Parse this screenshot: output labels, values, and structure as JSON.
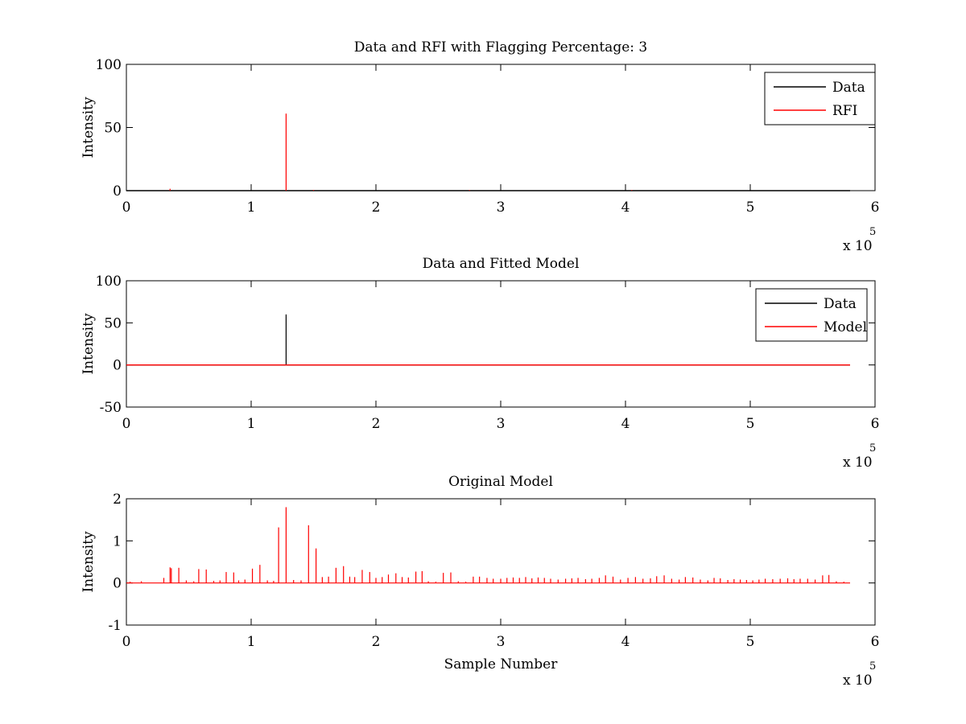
{
  "chart_data": [
    {
      "type": "line",
      "title": "Data and RFI with Flagging Percentage: 3",
      "xlabel": "",
      "ylabel": "Intensity",
      "xlim": [
        0,
        600000
      ],
      "ylim": [
        0,
        100
      ],
      "xticks": [
        0,
        1,
        2,
        3,
        4,
        5,
        6
      ],
      "yticks": [
        0,
        50,
        100
      ],
      "x_multiplier": "x 10",
      "x_multiplier_exp": "5",
      "legend_position": "top-right",
      "grid": false,
      "series": [
        {
          "name": "Data",
          "color": "#000000",
          "baseline": 0,
          "x": [
            0,
            580000
          ],
          "y": [
            0,
            0
          ]
        },
        {
          "name": "RFI",
          "color": "#ff0000",
          "baseline": 0,
          "spikes": [
            {
              "x": 35000,
              "y": 1.5
            },
            {
              "x": 128000,
              "y": 61
            },
            {
              "x": 150000,
              "y": 0.6
            },
            {
              "x": 275000,
              "y": 0.5
            },
            {
              "x": 405000,
              "y": 0.5
            }
          ]
        }
      ]
    },
    {
      "type": "line",
      "title": "Data and Fitted Model",
      "xlabel": "",
      "ylabel": "Intensity",
      "xlim": [
        0,
        600000
      ],
      "ylim": [
        -50,
        100
      ],
      "xticks": [
        0,
        1,
        2,
        3,
        4,
        5,
        6
      ],
      "yticks": [
        -50,
        0,
        50,
        100
      ],
      "x_multiplier": "x 10",
      "x_multiplier_exp": "5",
      "legend_position": "top-right",
      "grid": false,
      "series": [
        {
          "name": "Data",
          "color": "#000000",
          "baseline": 0,
          "x": [
            0,
            580000
          ],
          "y": [
            0,
            0
          ],
          "spikes": [
            {
              "x": 128000,
              "y": 60
            }
          ]
        },
        {
          "name": "Model",
          "color": "#ff0000",
          "baseline": 0,
          "x": [
            0,
            580000
          ],
          "y": [
            0,
            0
          ]
        }
      ]
    },
    {
      "type": "line",
      "title": "Original Model",
      "xlabel": "Sample Number",
      "ylabel": "Intensity",
      "xlim": [
        0,
        600000
      ],
      "ylim": [
        -1,
        2
      ],
      "xticks": [
        0,
        1,
        2,
        3,
        4,
        5,
        6
      ],
      "yticks": [
        -1,
        0,
        1,
        2
      ],
      "x_multiplier": "x 10",
      "x_multiplier_exp": "5",
      "grid": false,
      "series": [
        {
          "color": "#ff0000",
          "baseline": 0,
          "x_extent": [
            0,
            580000
          ],
          "spikes": [
            {
              "x": 3000,
              "y": 0.03
            },
            {
              "x": 12000,
              "y": 0.04
            },
            {
              "x": 30000,
              "y": 0.12
            },
            {
              "x": 35000,
              "y": 0.37
            },
            {
              "x": 36000,
              "y": 0.35
            },
            {
              "x": 42000,
              "y": 0.36
            },
            {
              "x": 48000,
              "y": 0.06
            },
            {
              "x": 54000,
              "y": 0.04
            },
            {
              "x": 58000,
              "y": 0.33
            },
            {
              "x": 64000,
              "y": 0.32
            },
            {
              "x": 70000,
              "y": 0.05
            },
            {
              "x": 75000,
              "y": 0.06
            },
            {
              "x": 80000,
              "y": 0.26
            },
            {
              "x": 86000,
              "y": 0.25
            },
            {
              "x": 90000,
              "y": 0.06
            },
            {
              "x": 95000,
              "y": 0.08
            },
            {
              "x": 101000,
              "y": 0.34
            },
            {
              "x": 107000,
              "y": 0.43
            },
            {
              "x": 113000,
              "y": 0.06
            },
            {
              "x": 118000,
              "y": 0.05
            },
            {
              "x": 122000,
              "y": 1.32
            },
            {
              "x": 128000,
              "y": 1.8
            },
            {
              "x": 134000,
              "y": 0.07
            },
            {
              "x": 140000,
              "y": 0.06
            },
            {
              "x": 146000,
              "y": 1.37
            },
            {
              "x": 152000,
              "y": 0.82
            },
            {
              "x": 157000,
              "y": 0.14
            },
            {
              "x": 162000,
              "y": 0.15
            },
            {
              "x": 168000,
              "y": 0.36
            },
            {
              "x": 174000,
              "y": 0.4
            },
            {
              "x": 179000,
              "y": 0.15
            },
            {
              "x": 183000,
              "y": 0.14
            },
            {
              "x": 189000,
              "y": 0.31
            },
            {
              "x": 195000,
              "y": 0.26
            },
            {
              "x": 200000,
              "y": 0.12
            },
            {
              "x": 205000,
              "y": 0.14
            },
            {
              "x": 210000,
              "y": 0.2
            },
            {
              "x": 216000,
              "y": 0.23
            },
            {
              "x": 221000,
              "y": 0.14
            },
            {
              "x": 226000,
              "y": 0.13
            },
            {
              "x": 232000,
              "y": 0.27
            },
            {
              "x": 237000,
              "y": 0.28
            },
            {
              "x": 242000,
              "y": 0.04
            },
            {
              "x": 248000,
              "y": 0.03
            },
            {
              "x": 254000,
              "y": 0.24
            },
            {
              "x": 260000,
              "y": 0.25
            },
            {
              "x": 266000,
              "y": 0.04
            },
            {
              "x": 272000,
              "y": 0.03
            },
            {
              "x": 278000,
              "y": 0.15
            },
            {
              "x": 283000,
              "y": 0.15
            },
            {
              "x": 289000,
              "y": 0.12
            },
            {
              "x": 294000,
              "y": 0.1
            },
            {
              "x": 300000,
              "y": 0.1
            },
            {
              "x": 305000,
              "y": 0.12
            },
            {
              "x": 310000,
              "y": 0.13
            },
            {
              "x": 315000,
              "y": 0.12
            },
            {
              "x": 320000,
              "y": 0.14
            },
            {
              "x": 325000,
              "y": 0.11
            },
            {
              "x": 330000,
              "y": 0.13
            },
            {
              "x": 335000,
              "y": 0.12
            },
            {
              "x": 340000,
              "y": 0.1
            },
            {
              "x": 346000,
              "y": 0.08
            },
            {
              "x": 352000,
              "y": 0.1
            },
            {
              "x": 357000,
              "y": 0.11
            },
            {
              "x": 362000,
              "y": 0.12
            },
            {
              "x": 368000,
              "y": 0.09
            },
            {
              "x": 373000,
              "y": 0.1
            },
            {
              "x": 379000,
              "y": 0.12
            },
            {
              "x": 384000,
              "y": 0.18
            },
            {
              "x": 390000,
              "y": 0.15
            },
            {
              "x": 396000,
              "y": 0.08
            },
            {
              "x": 402000,
              "y": 0.12
            },
            {
              "x": 408000,
              "y": 0.14
            },
            {
              "x": 414000,
              "y": 0.1
            },
            {
              "x": 420000,
              "y": 0.11
            },
            {
              "x": 425000,
              "y": 0.16
            },
            {
              "x": 431000,
              "y": 0.18
            },
            {
              "x": 437000,
              "y": 0.1
            },
            {
              "x": 443000,
              "y": 0.08
            },
            {
              "x": 448000,
              "y": 0.14
            },
            {
              "x": 454000,
              "y": 0.13
            },
            {
              "x": 460000,
              "y": 0.08
            },
            {
              "x": 466000,
              "y": 0.06
            },
            {
              "x": 471000,
              "y": 0.12
            },
            {
              "x": 476000,
              "y": 0.11
            },
            {
              "x": 482000,
              "y": 0.07
            },
            {
              "x": 487000,
              "y": 0.09
            },
            {
              "x": 492000,
              "y": 0.08
            },
            {
              "x": 497000,
              "y": 0.07
            },
            {
              "x": 502000,
              "y": 0.06
            },
            {
              "x": 507000,
              "y": 0.08
            },
            {
              "x": 512000,
              "y": 0.1
            },
            {
              "x": 518000,
              "y": 0.09
            },
            {
              "x": 524000,
              "y": 0.1
            },
            {
              "x": 530000,
              "y": 0.11
            },
            {
              "x": 535000,
              "y": 0.09
            },
            {
              "x": 540000,
              "y": 0.1
            },
            {
              "x": 546000,
              "y": 0.1
            },
            {
              "x": 552000,
              "y": 0.08
            },
            {
              "x": 558000,
              "y": 0.18
            },
            {
              "x": 563000,
              "y": 0.19
            },
            {
              "x": 569000,
              "y": 0.04
            },
            {
              "x": 575000,
              "y": 0.03
            }
          ]
        }
      ]
    }
  ]
}
